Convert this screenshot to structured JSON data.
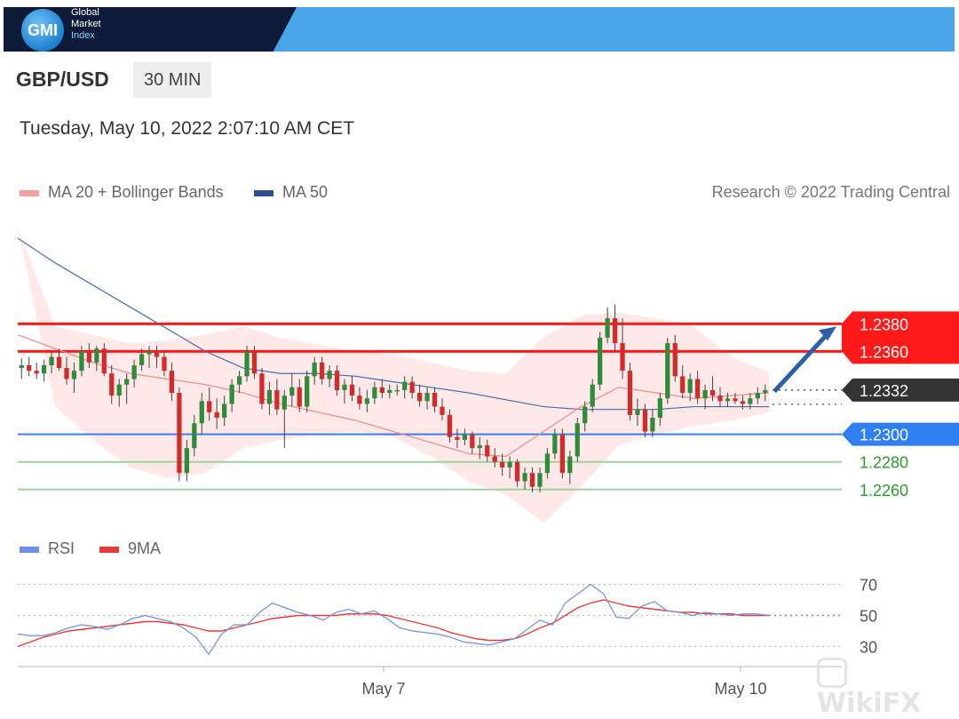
{
  "header": {
    "logo": "GMI",
    "brand_lines": [
      "Global",
      "Market",
      "Index"
    ]
  },
  "instrument": {
    "pair": "GBP/USD",
    "timeframe": "30 MIN"
  },
  "timestamp": "Tuesday, May 10, 2022 2:07:10 AM CET",
  "legend": {
    "ma20": "MA 20 + Bollinger Bands",
    "ma50": "MA 50",
    "credit": "Research © 2022 Trading Central",
    "rsi": "RSI",
    "rsi_ma": "9MA"
  },
  "colors": {
    "up": "#2e8b3a",
    "down": "#d42a2a",
    "ma20": "#f08a8a",
    "ma50": "#4a6ea8",
    "band": "#fde0e0",
    "resistance": "#ff1a1a",
    "pivot": "#3a7ee8",
    "support": "#2e9a2e",
    "rsi": "#6f8fe0",
    "rsi_ma": "#e83a3a",
    "arrow": "#2b5fa8"
  },
  "watermark": "WikiFX",
  "chart_data": [
    {
      "type": "candlestick",
      "title": "GBP/USD 30 MIN",
      "x_ticks": [
        "May 7",
        "May 10"
      ],
      "y_range": [
        1.2238,
        1.246
      ],
      "candles": [
        [
          1.2348,
          1.2355,
          1.234,
          1.235
        ],
        [
          1.235,
          1.2356,
          1.2342,
          1.2346
        ],
        [
          1.2346,
          1.2352,
          1.234,
          1.2344
        ],
        [
          1.2344,
          1.2354,
          1.2338,
          1.235
        ],
        [
          1.235,
          1.236,
          1.2344,
          1.2356
        ],
        [
          1.2356,
          1.2362,
          1.2346,
          1.2348
        ],
        [
          1.2348,
          1.2356,
          1.2336,
          1.234
        ],
        [
          1.234,
          1.2352,
          1.233,
          1.2346
        ],
        [
          1.2346,
          1.2364,
          1.2342,
          1.236
        ],
        [
          1.236,
          1.2366,
          1.2348,
          1.2352
        ],
        [
          1.2352,
          1.2364,
          1.2346,
          1.2362
        ],
        [
          1.2362,
          1.2366,
          1.2342,
          1.2344
        ],
        [
          1.2344,
          1.235,
          1.2322,
          1.2328
        ],
        [
          1.2328,
          1.234,
          1.232,
          1.2336
        ],
        [
          1.2336,
          1.2344,
          1.2322,
          1.234
        ],
        [
          1.234,
          1.2354,
          1.2334,
          1.235
        ],
        [
          1.235,
          1.2362,
          1.2346,
          1.2358
        ],
        [
          1.2358,
          1.2364,
          1.2348,
          1.236
        ],
        [
          1.236,
          1.2364,
          1.2348,
          1.2356
        ],
        [
          1.2356,
          1.236,
          1.2342,
          1.2346
        ],
        [
          1.2346,
          1.2352,
          1.2324,
          1.233
        ],
        [
          1.233,
          1.2334,
          1.2266,
          1.2272
        ],
        [
          1.2272,
          1.2296,
          1.2266,
          1.229
        ],
        [
          1.229,
          1.2314,
          1.2284,
          1.2308
        ],
        [
          1.2308,
          1.233,
          1.23,
          1.2324
        ],
        [
          1.2324,
          1.2334,
          1.231,
          1.2316
        ],
        [
          1.2316,
          1.2326,
          1.2304,
          1.2312
        ],
        [
          1.2312,
          1.2328,
          1.2306,
          1.2322
        ],
        [
          1.2322,
          1.234,
          1.2316,
          1.2336
        ],
        [
          1.2336,
          1.2346,
          1.233,
          1.2342
        ],
        [
          1.2342,
          1.2364,
          1.2338,
          1.236
        ],
        [
          1.236,
          1.2364,
          1.234,
          1.2344
        ],
        [
          1.2344,
          1.2348,
          1.2318,
          1.2322
        ],
        [
          1.2322,
          1.2338,
          1.2314,
          1.2332
        ],
        [
          1.2332,
          1.234,
          1.2314,
          1.2318
        ],
        [
          1.2318,
          1.2332,
          1.229,
          1.2328
        ],
        [
          1.2328,
          1.2344,
          1.232,
          1.2334
        ],
        [
          1.2334,
          1.234,
          1.2316,
          1.232
        ],
        [
          1.232,
          1.2346,
          1.2316,
          1.2342
        ],
        [
          1.2342,
          1.2356,
          1.2336,
          1.2352
        ],
        [
          1.2352,
          1.2356,
          1.2336,
          1.234
        ],
        [
          1.234,
          1.235,
          1.2334,
          1.2346
        ],
        [
          1.2346,
          1.235,
          1.2328,
          1.2332
        ],
        [
          1.2332,
          1.234,
          1.2322,
          1.2336
        ],
        [
          1.2336,
          1.2342,
          1.2324,
          1.2328
        ],
        [
          1.2328,
          1.2334,
          1.2318,
          1.2322
        ],
        [
          1.2322,
          1.2332,
          1.2316,
          1.2326
        ],
        [
          1.2326,
          1.2338,
          1.2322,
          1.2334
        ],
        [
          1.2334,
          1.234,
          1.2326,
          1.233
        ],
        [
          1.233,
          1.2336,
          1.2326,
          1.2332
        ],
        [
          1.2332,
          1.2336,
          1.2328,
          1.2332
        ],
        [
          1.2332,
          1.2342,
          1.2326,
          1.2338
        ],
        [
          1.2338,
          1.2342,
          1.2326,
          1.233
        ],
        [
          1.233,
          1.2336,
          1.232,
          1.2324
        ],
        [
          1.2324,
          1.2334,
          1.2318,
          1.233
        ],
        [
          1.233,
          1.2334,
          1.2316,
          1.232
        ],
        [
          1.232,
          1.2326,
          1.231,
          1.2314
        ],
        [
          1.2314,
          1.2318,
          1.2294,
          1.2298
        ],
        [
          1.2298,
          1.2304,
          1.229,
          1.2296
        ],
        [
          1.2296,
          1.2304,
          1.2292,
          1.23
        ],
        [
          1.23,
          1.2302,
          1.2286,
          1.229
        ],
        [
          1.229,
          1.2298,
          1.2282,
          1.2292
        ],
        [
          1.2292,
          1.2296,
          1.228,
          1.2284
        ],
        [
          1.2284,
          1.229,
          1.2276,
          1.228
        ],
        [
          1.228,
          1.2286,
          1.227,
          1.2276
        ],
        [
          1.2276,
          1.2284,
          1.2268,
          1.228
        ],
        [
          1.228,
          1.2282,
          1.2262,
          1.2266
        ],
        [
          1.2266,
          1.2276,
          1.226,
          1.2272
        ],
        [
          1.2272,
          1.2276,
          1.2258,
          1.2262
        ],
        [
          1.2262,
          1.2276,
          1.2258,
          1.2272
        ],
        [
          1.2272,
          1.229,
          1.2268,
          1.2286
        ],
        [
          1.2286,
          1.2304,
          1.2282,
          1.23
        ],
        [
          1.23,
          1.2304,
          1.2268,
          1.2272
        ],
        [
          1.2272,
          1.2288,
          1.2264,
          1.2284
        ],
        [
          1.2284,
          1.2312,
          1.228,
          1.2308
        ],
        [
          1.2308,
          1.2324,
          1.2302,
          1.232
        ],
        [
          1.232,
          1.234,
          1.2316,
          1.2336
        ],
        [
          1.2336,
          1.2374,
          1.2332,
          1.237
        ],
        [
          1.237,
          1.2392,
          1.2366,
          1.2384
        ],
        [
          1.2384,
          1.2394,
          1.236,
          1.2366
        ],
        [
          1.2366,
          1.2384,
          1.234,
          1.2346
        ],
        [
          1.2346,
          1.2352,
          1.231,
          1.2314
        ],
        [
          1.2314,
          1.2326,
          1.2306,
          1.2318
        ],
        [
          1.2318,
          1.2322,
          1.2298,
          1.2302
        ],
        [
          1.2302,
          1.2318,
          1.2298,
          1.2312
        ],
        [
          1.2312,
          1.233,
          1.2306,
          1.2326
        ],
        [
          1.2326,
          1.237,
          1.2322,
          1.2366
        ],
        [
          1.2366,
          1.2372,
          1.2338,
          1.2342
        ],
        [
          1.2342,
          1.235,
          1.2326,
          1.233
        ],
        [
          1.233,
          1.2344,
          1.2324,
          1.234
        ],
        [
          1.234,
          1.2346,
          1.2322,
          1.2326
        ],
        [
          1.2326,
          1.2336,
          1.2318,
          1.2332
        ],
        [
          1.2332,
          1.2342,
          1.2324,
          1.2328
        ],
        [
          1.2328,
          1.2334,
          1.232,
          1.2324
        ],
        [
          1.2324,
          1.233,
          1.232,
          1.2326
        ],
        [
          1.2326,
          1.233,
          1.2322,
          1.2324
        ],
        [
          1.2324,
          1.2328,
          1.2318,
          1.2322
        ],
        [
          1.2322,
          1.233,
          1.2318,
          1.2326
        ],
        [
          1.2326,
          1.2334,
          1.2322,
          1.233
        ],
        [
          1.233,
          1.2336,
          1.2324,
          1.2332
        ]
      ],
      "ma20_line": [
        1.2372,
        1.2362,
        1.2352,
        1.2344,
        1.234,
        1.2336,
        1.233,
        1.2322,
        1.2316,
        1.231,
        1.2302,
        1.2294,
        1.2286,
        1.2284,
        1.2302,
        1.232,
        1.2334,
        1.233,
        1.2326,
        1.2328,
        1.233
      ],
      "ma50_line": [
        1.2442,
        1.2424,
        1.2408,
        1.2392,
        1.2376,
        1.236,
        1.2348,
        1.2344,
        1.2344,
        1.2342,
        1.2338,
        1.2334,
        1.233,
        1.2325,
        1.232,
        1.2318,
        1.2318,
        1.2318,
        1.232,
        1.232,
        1.232
      ],
      "bollinger_upper": [
        1.245,
        1.2378,
        1.2372,
        1.2366,
        1.2368,
        1.2372,
        1.2378,
        1.237,
        1.2365,
        1.236,
        1.2358,
        1.2352,
        1.2346,
        1.2344,
        1.237,
        1.2386,
        1.2388,
        1.2384,
        1.2378,
        1.2356,
        1.2345
      ],
      "bollinger_lower": [
        1.245,
        1.232,
        1.2296,
        1.2276,
        1.2268,
        1.2272,
        1.229,
        1.2296,
        1.23,
        1.2302,
        1.2298,
        1.2284,
        1.2266,
        1.2256,
        1.2236,
        1.2262,
        1.2292,
        1.23,
        1.2306,
        1.231,
        1.2316
      ],
      "levels": {
        "resistance": [
          1.238,
          1.236
        ],
        "last_price": 1.2332,
        "pivot": 1.23,
        "support": [
          1.228,
          1.226
        ]
      },
      "level_labels": [
        "1.2380",
        "1.2360",
        "1.2332",
        "1.2300",
        "1.2280",
        "1.2260"
      ]
    },
    {
      "type": "line",
      "title": "RSI",
      "y_ticks": [
        70,
        50,
        30
      ],
      "y_range": [
        20,
        80
      ],
      "series": [
        {
          "name": "RSI",
          "values": [
            38,
            37,
            37,
            39,
            42,
            44,
            43,
            41,
            44,
            48,
            50,
            48,
            46,
            42,
            36,
            25,
            38,
            44,
            44,
            52,
            58,
            55,
            52,
            50,
            47,
            52,
            54,
            51,
            53,
            48,
            42,
            40,
            39,
            38,
            36,
            33,
            32,
            31,
            33,
            35,
            41,
            47,
            44,
            58,
            64,
            70,
            64,
            49,
            48,
            56,
            59,
            53,
            52,
            50,
            52,
            51,
            50,
            51,
            51,
            50
          ]
        },
        {
          "name": "9MA",
          "values": [
            30,
            33,
            36,
            38,
            40,
            41,
            42,
            43,
            44,
            45,
            46,
            46,
            45,
            44,
            42,
            40,
            40,
            42,
            44,
            46,
            48,
            49,
            50,
            50,
            50,
            50,
            51,
            51,
            51,
            50,
            48,
            46,
            44,
            42,
            39,
            37,
            35,
            34,
            34,
            35,
            38,
            42,
            45,
            50,
            55,
            58,
            60,
            58,
            56,
            55,
            54,
            53,
            52,
            52,
            51,
            51,
            51,
            50,
            50,
            50
          ]
        }
      ]
    }
  ]
}
